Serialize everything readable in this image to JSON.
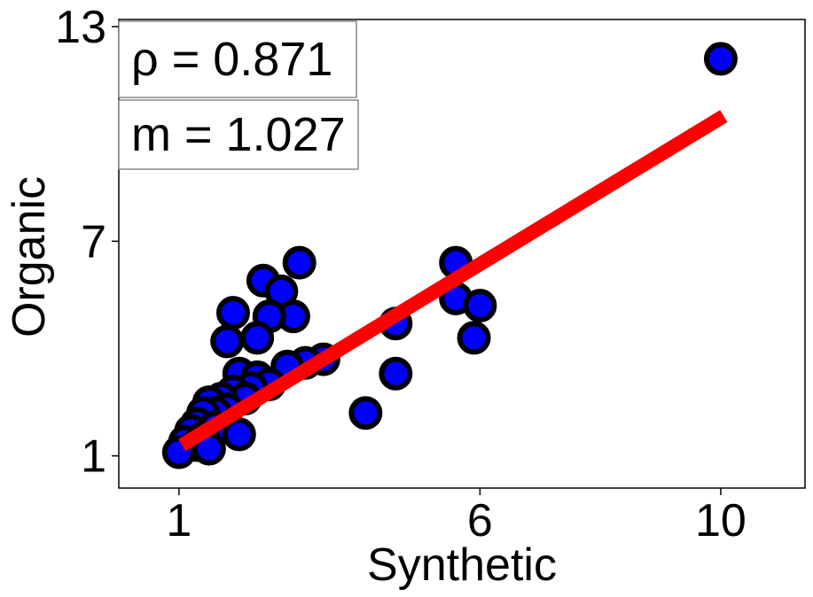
{
  "chart_data": {
    "type": "scatter",
    "xlabel": "Synthetic",
    "ylabel": "Organic",
    "xlim": [
      0.0,
      11.4
    ],
    "ylim": [
      0.1,
      13.2
    ],
    "xticks": [
      1,
      6,
      10
    ],
    "yticks": [
      1,
      7,
      13
    ],
    "grid": false,
    "annotations": {
      "rho": "ρ = 0.871",
      "slope": "m = 1.027"
    },
    "marker_color": "#0000ff",
    "marker_edge_color": "#000000",
    "fit_line_color": "#ff0000",
    "fit_line": {
      "x": [
        1.05,
        10.05
      ],
      "y": [
        1.3,
        10.5
      ]
    },
    "points": [
      {
        "x": 10.0,
        "y": 12.1
      },
      {
        "x": 3.0,
        "y": 6.4
      },
      {
        "x": 5.6,
        "y": 6.4
      },
      {
        "x": 2.4,
        "y": 5.9
      },
      {
        "x": 2.7,
        "y": 5.6
      },
      {
        "x": 5.6,
        "y": 5.4
      },
      {
        "x": 6.0,
        "y": 5.2
      },
      {
        "x": 1.9,
        "y": 5.0
      },
      {
        "x": 2.9,
        "y": 4.9
      },
      {
        "x": 2.5,
        "y": 4.9
      },
      {
        "x": 4.6,
        "y": 4.7
      },
      {
        "x": 5.9,
        "y": 4.3
      },
      {
        "x": 2.3,
        "y": 4.3
      },
      {
        "x": 1.8,
        "y": 4.2
      },
      {
        "x": 3.4,
        "y": 3.7
      },
      {
        "x": 3.1,
        "y": 3.6
      },
      {
        "x": 2.8,
        "y": 3.5
      },
      {
        "x": 4.6,
        "y": 3.3
      },
      {
        "x": 2.0,
        "y": 3.3
      },
      {
        "x": 2.3,
        "y": 3.2
      },
      {
        "x": 2.5,
        "y": 3.0
      },
      {
        "x": 2.2,
        "y": 2.9
      },
      {
        "x": 1.9,
        "y": 2.8
      },
      {
        "x": 2.1,
        "y": 2.6
      },
      {
        "x": 1.7,
        "y": 2.6
      },
      {
        "x": 1.5,
        "y": 2.5
      },
      {
        "x": 1.8,
        "y": 2.3
      },
      {
        "x": 1.6,
        "y": 2.2
      },
      {
        "x": 1.4,
        "y": 2.2
      },
      {
        "x": 4.1,
        "y": 2.2
      },
      {
        "x": 1.3,
        "y": 1.9
      },
      {
        "x": 1.6,
        "y": 1.8
      },
      {
        "x": 1.2,
        "y": 1.7
      },
      {
        "x": 1.4,
        "y": 1.5
      },
      {
        "x": 2.0,
        "y": 1.6
      },
      {
        "x": 1.1,
        "y": 1.4
      },
      {
        "x": 1.3,
        "y": 1.3
      },
      {
        "x": 1.5,
        "y": 1.2
      },
      {
        "x": 1.0,
        "y": 1.1
      }
    ]
  }
}
